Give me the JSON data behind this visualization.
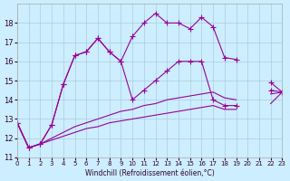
{
  "xlabel": "Windchill (Refroidissement éolien,°C)",
  "bg_color": "#cceeff",
  "grid_color": "#aaccdd",
  "line_color": "#990099",
  "xlim": [
    0,
    23
  ],
  "ylim": [
    11,
    19
  ],
  "xticks": [
    0,
    1,
    2,
    3,
    4,
    5,
    6,
    7,
    8,
    9,
    10,
    11,
    12,
    13,
    14,
    15,
    16,
    17,
    18,
    19,
    20,
    21,
    22,
    23
  ],
  "yticks": [
    11,
    12,
    13,
    14,
    15,
    16,
    17,
    18
  ],
  "series1_x": [
    0,
    1,
    2,
    3,
    4,
    5,
    6,
    7,
    8,
    9,
    10,
    11,
    12,
    13,
    14,
    15,
    16,
    17,
    18,
    19,
    22,
    23
  ],
  "series1_y": [
    12.8,
    11.5,
    11.7,
    12.7,
    14.8,
    16.3,
    16.5,
    17.2,
    16.5,
    16.0,
    17.3,
    18.0,
    18.5,
    18.0,
    18.0,
    17.7,
    18.3,
    17.8,
    16.2,
    16.1,
    14.9,
    14.4
  ],
  "series2_x": [
    0,
    1,
    2,
    3,
    4,
    5,
    6,
    7,
    8,
    9,
    10,
    11,
    12,
    13,
    14,
    15,
    16,
    17,
    18,
    19,
    22,
    23
  ],
  "series2_y": [
    12.8,
    11.5,
    11.7,
    12.7,
    14.8,
    16.3,
    16.5,
    17.2,
    16.5,
    16.0,
    14.0,
    14.5,
    15.0,
    15.5,
    16.0,
    16.0,
    16.0,
    14.0,
    13.7,
    13.7,
    14.5,
    14.4
  ],
  "series3_x": [
    0,
    1,
    2,
    3,
    4,
    5,
    6,
    7,
    8,
    9,
    10,
    11,
    12,
    13,
    14,
    15,
    16,
    17,
    18,
    19,
    22,
    23
  ],
  "series3_y": [
    12.8,
    11.5,
    11.7,
    12.0,
    12.3,
    12.6,
    12.8,
    13.0,
    13.2,
    13.4,
    13.5,
    13.7,
    13.8,
    14.0,
    14.1,
    14.2,
    14.3,
    14.4,
    14.1,
    14.0,
    14.3,
    14.4
  ],
  "series4_x": [
    0,
    1,
    2,
    3,
    4,
    5,
    6,
    7,
    8,
    9,
    10,
    11,
    12,
    13,
    14,
    15,
    16,
    17,
    18,
    19,
    22,
    23
  ],
  "series4_y": [
    12.8,
    11.5,
    11.7,
    11.9,
    12.1,
    12.3,
    12.5,
    12.6,
    12.8,
    12.9,
    13.0,
    13.1,
    13.2,
    13.3,
    13.4,
    13.5,
    13.6,
    13.7,
    13.5,
    13.5,
    13.8,
    14.4
  ]
}
